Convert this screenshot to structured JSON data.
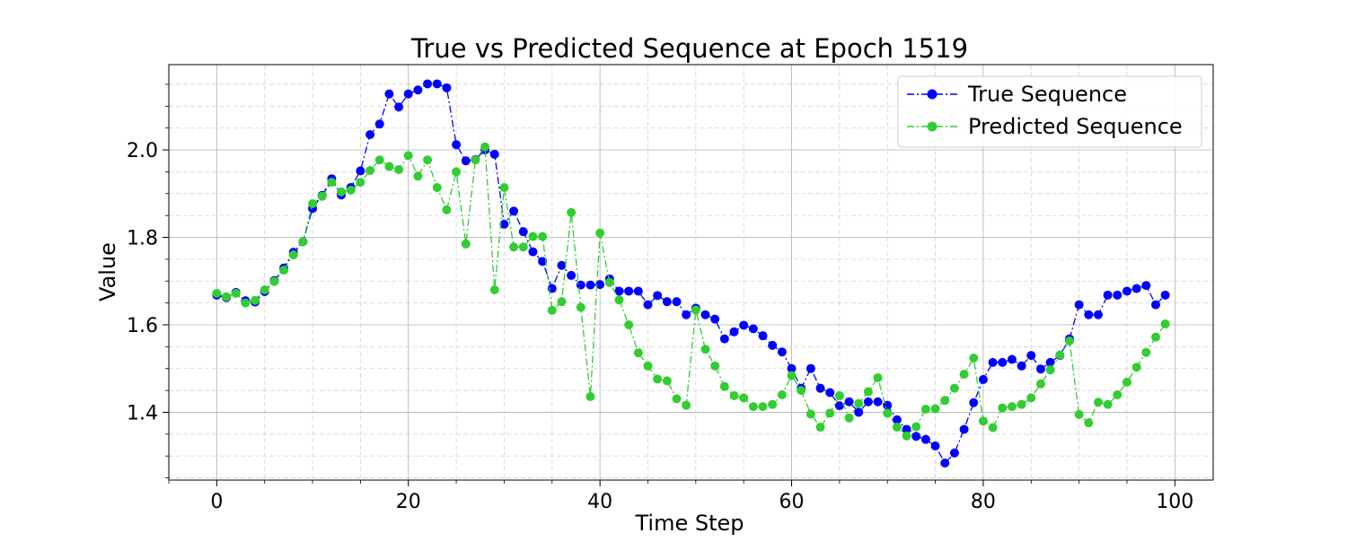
{
  "chart_data": {
    "type": "line",
    "title": "True vs Predicted Sequence at Epoch 1519",
    "xlabel": "Time Step",
    "ylabel": "Value",
    "xlim": [
      -5,
      104
    ],
    "ylim": [
      1.245,
      2.195
    ],
    "xticks": [
      0,
      20,
      40,
      60,
      80,
      100
    ],
    "xtick_labels": [
      "0",
      "20",
      "40",
      "60",
      "80",
      "100"
    ],
    "yticks": [
      1.4,
      1.6,
      1.8,
      2.0
    ],
    "ytick_labels": [
      "1.4",
      "1.6",
      "1.8",
      "2.0"
    ],
    "grid": true,
    "legend_position": "upper right",
    "x": [
      0,
      1,
      2,
      3,
      4,
      5,
      6,
      7,
      8,
      9,
      10,
      11,
      12,
      13,
      14,
      15,
      16,
      17,
      18,
      19,
      20,
      21,
      22,
      23,
      24,
      25,
      26,
      27,
      28,
      29,
      30,
      31,
      32,
      33,
      34,
      35,
      36,
      37,
      38,
      39,
      40,
      41,
      42,
      43,
      44,
      45,
      46,
      47,
      48,
      49,
      50,
      51,
      52,
      53,
      54,
      55,
      56,
      57,
      58,
      59,
      60,
      61,
      62,
      63,
      64,
      65,
      66,
      67,
      68,
      69,
      70,
      71,
      72,
      73,
      74,
      75,
      76,
      77,
      78,
      79,
      80,
      81,
      82,
      83,
      84,
      85,
      86,
      87,
      88,
      89,
      90,
      91,
      92,
      93,
      94,
      95,
      96,
      97,
      98,
      99
    ],
    "series": [
      {
        "name": "True Sequence",
        "color": "#0000ff",
        "line_style": "dash-dot",
        "marker": "circle",
        "values": [
          1.668,
          1.662,
          1.674,
          1.655,
          1.652,
          1.676,
          1.701,
          1.73,
          1.766,
          1.79,
          1.866,
          1.896,
          1.934,
          1.897,
          1.914,
          1.952,
          2.035,
          2.059,
          2.128,
          2.098,
          2.128,
          2.137,
          2.151,
          2.151,
          2.142,
          2.012,
          1.975,
          1.978,
          2.0,
          1.99,
          1.83,
          1.86,
          1.813,
          1.767,
          1.745,
          1.683,
          1.736,
          1.713,
          1.691,
          1.691,
          1.692,
          1.705,
          1.677,
          1.677,
          1.677,
          1.646,
          1.667,
          1.653,
          1.653,
          1.623,
          1.638,
          1.623,
          1.613,
          1.568,
          1.584,
          1.599,
          1.591,
          1.575,
          1.553,
          1.538,
          1.5,
          1.455,
          1.5,
          1.455,
          1.445,
          1.415,
          1.424,
          1.4,
          1.424,
          1.424,
          1.416,
          1.383,
          1.361,
          1.345,
          1.338,
          1.323,
          1.284,
          1.307,
          1.361,
          1.422,
          1.475,
          1.514,
          1.514,
          1.521,
          1.506,
          1.53,
          1.499,
          1.514,
          1.53,
          1.568,
          1.646,
          1.623,
          1.623,
          1.668,
          1.668,
          1.677,
          1.683,
          1.69,
          1.646,
          1.668
        ]
      },
      {
        "name": "Predicted Sequence",
        "color": "#32cd32",
        "line_style": "dash-dot",
        "marker": "circle",
        "values": [
          1.672,
          1.664,
          1.672,
          1.65,
          1.656,
          1.68,
          1.699,
          1.725,
          1.76,
          1.79,
          1.877,
          1.894,
          1.926,
          1.904,
          1.908,
          1.926,
          1.953,
          1.977,
          1.962,
          1.955,
          1.987,
          1.94,
          1.977,
          1.914,
          1.863,
          1.95,
          1.785,
          1.977,
          2.007,
          1.68,
          1.914,
          1.778,
          1.778,
          1.802,
          1.802,
          1.633,
          1.653,
          1.857,
          1.64,
          1.436,
          1.81,
          1.697,
          1.657,
          1.6,
          1.536,
          1.506,
          1.476,
          1.472,
          1.431,
          1.416,
          1.634,
          1.544,
          1.506,
          1.459,
          1.438,
          1.433,
          1.413,
          1.413,
          1.418,
          1.44,
          1.484,
          1.45,
          1.396,
          1.366,
          1.398,
          1.438,
          1.387,
          1.42,
          1.447,
          1.479,
          1.398,
          1.366,
          1.346,
          1.367,
          1.407,
          1.408,
          1.427,
          1.455,
          1.487,
          1.524,
          1.38,
          1.365,
          1.41,
          1.413,
          1.418,
          1.433,
          1.465,
          1.497,
          1.531,
          1.563,
          1.395,
          1.376,
          1.423,
          1.418,
          1.44,
          1.469,
          1.503,
          1.537,
          1.572,
          1.602
        ]
      }
    ]
  }
}
